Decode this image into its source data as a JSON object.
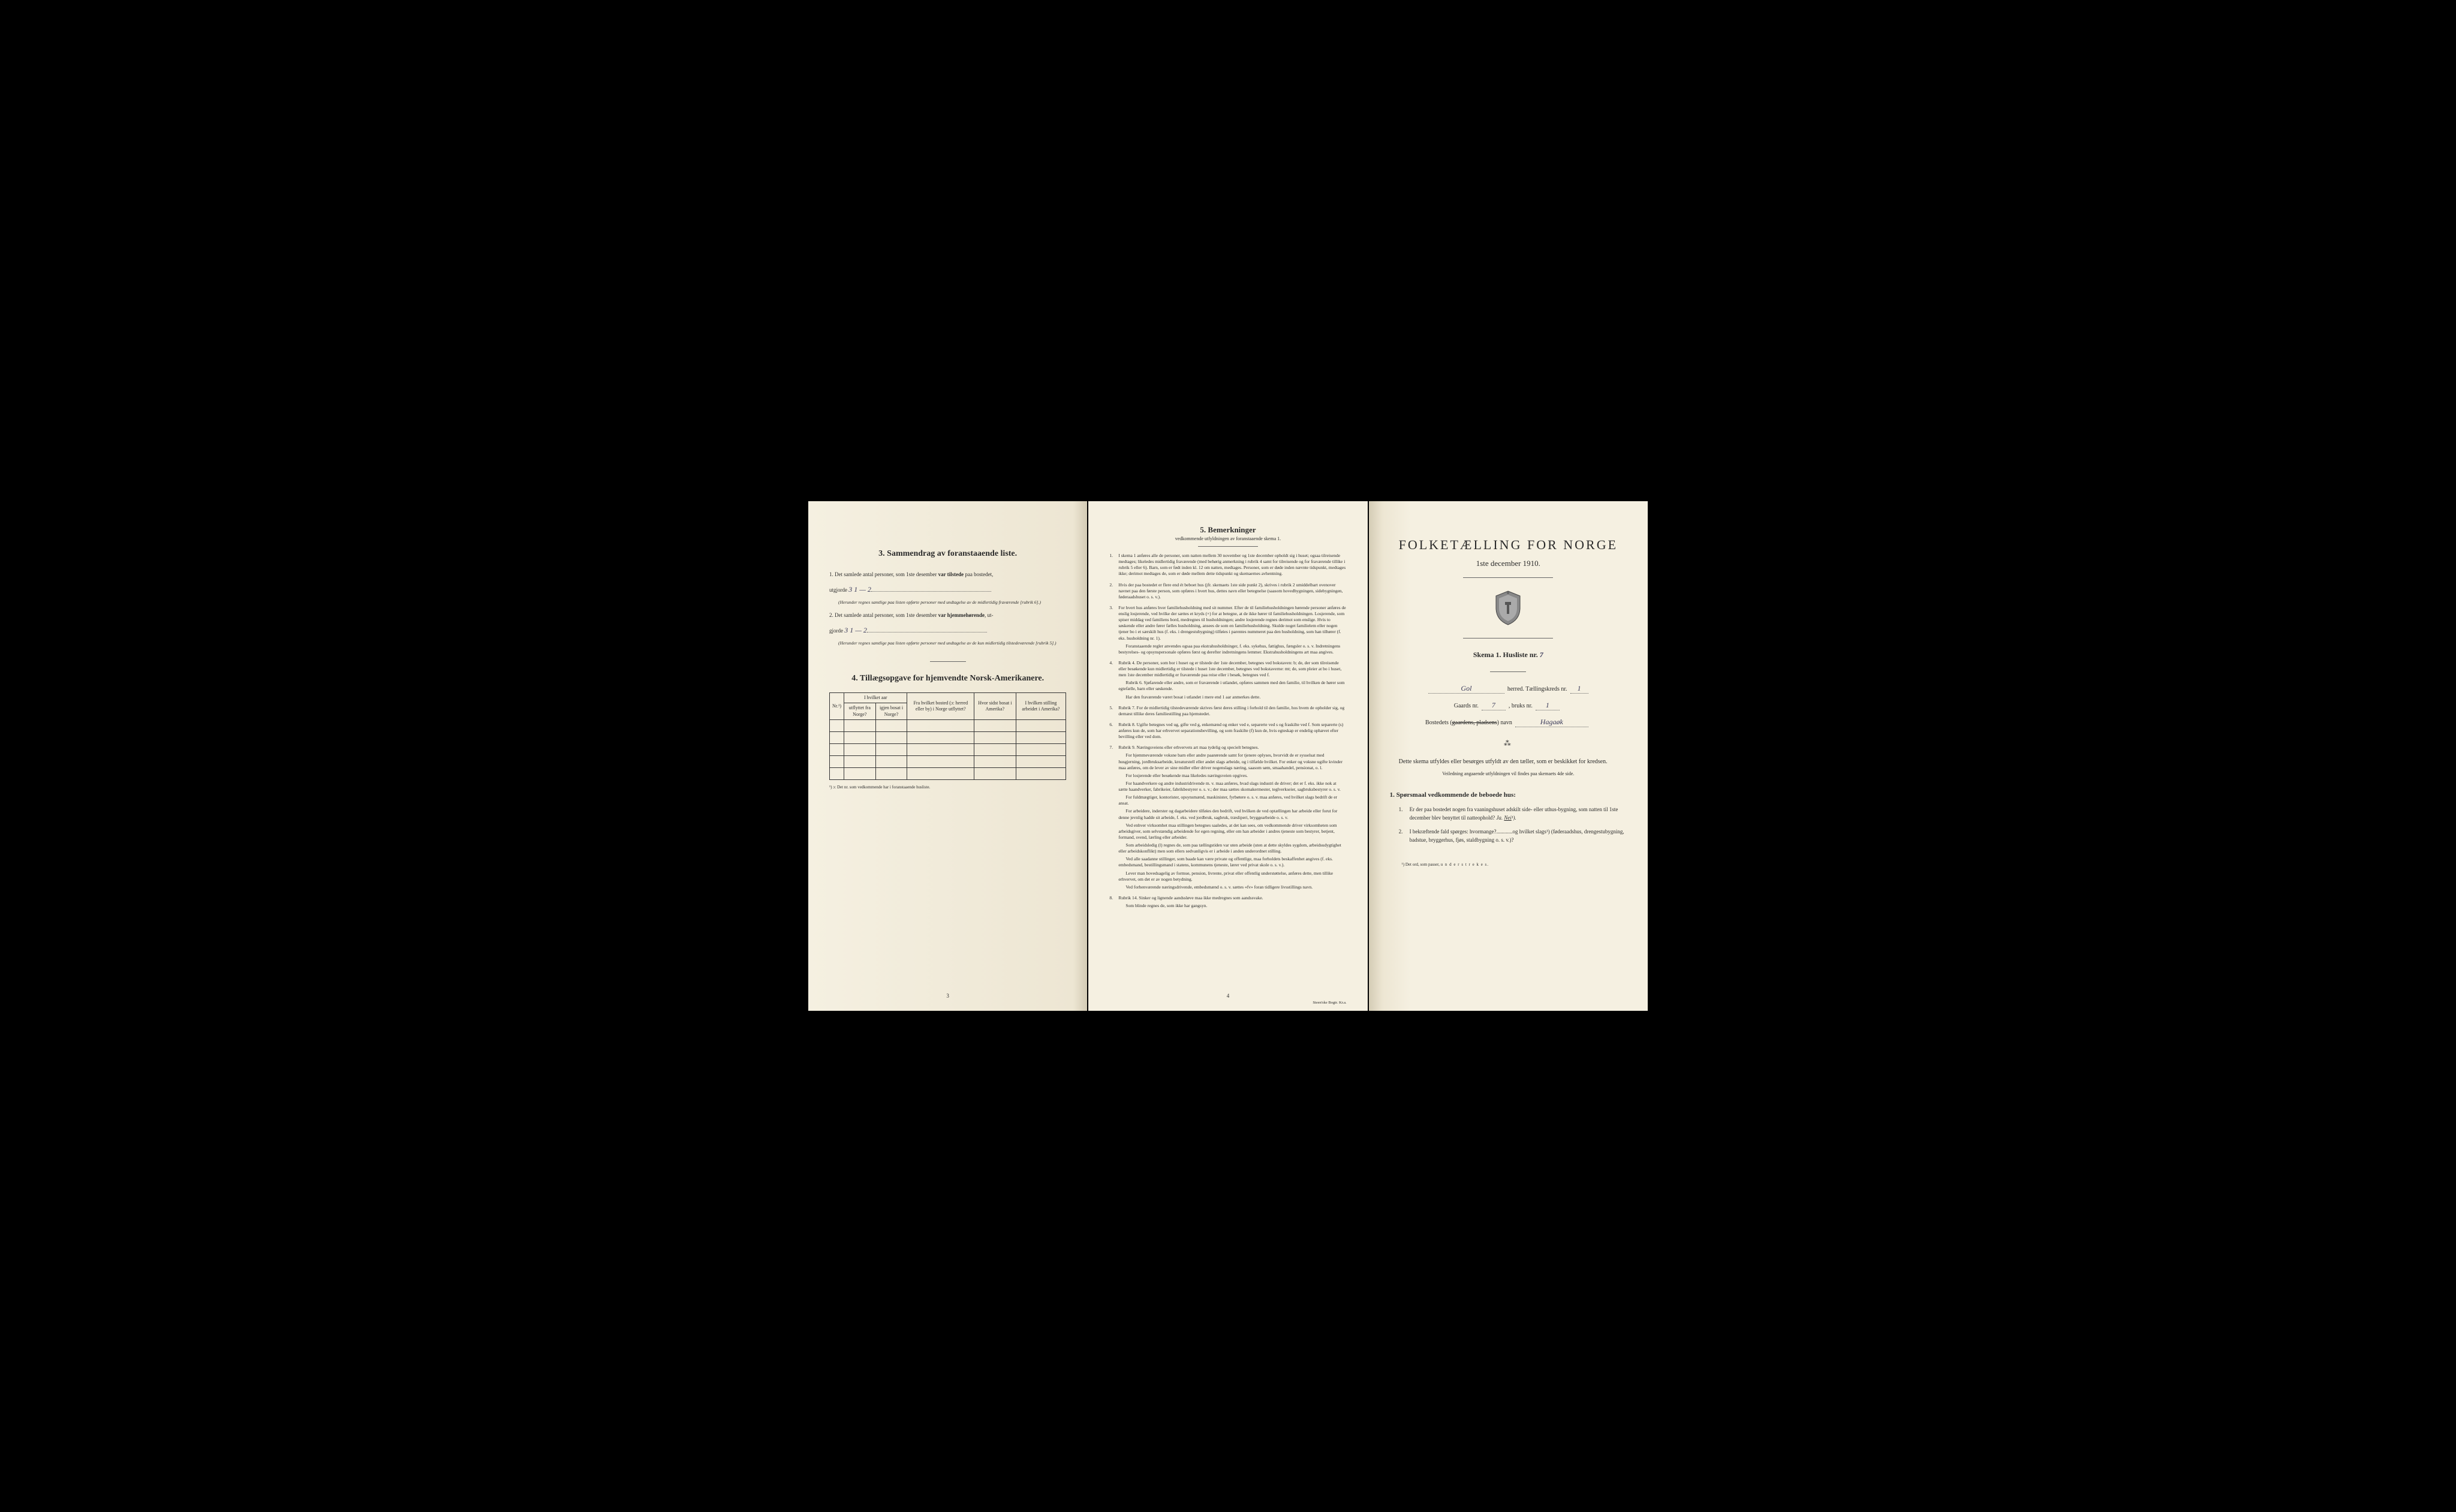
{
  "leftPage": {
    "section3": {
      "title": "3.   Sammendrag av foranstaaende liste.",
      "q1_prefix": "1.  Det samlede antal personer, som 1ste desember ",
      "q1_bold": "var tilstede",
      "q1_suffix": " paa bostedet,",
      "q1_line2": "utgjorde",
      "q1_handwritten": "3    1 — 2",
      "q1_note": "(Herunder regnes samtlige paa listen opførte personer med undtagelse av de midlertidig fraværende [rubrik 6].)",
      "q2_prefix": "2.  Det samlede antal personer, som 1ste desember ",
      "q2_bold": "var hjemmehørende",
      "q2_suffix": ", ut-",
      "q2_line2": "gjorde",
      "q2_handwritten": "3    1 — 2",
      "q2_note": "(Herunder regnes samtlige paa listen opførte personer med undtagelse av de kun midlertidig tilstedeværende [rubrik 5].)"
    },
    "section4": {
      "title": "4.   Tillægsopgave for hjemvendte Norsk-Amerikanere.",
      "headers": {
        "col1": "Nr.¹)",
        "col2a": "I hvilket aar",
        "col2_sub1": "utflyttet fra Norge?",
        "col2_sub2": "igjen bosat i Norge?",
        "col3": "Fra hvilket bosted (ɔ: herred eller by) i Norge utflyttet?",
        "col4": "Hvor sidst bosat i Amerika?",
        "col5": "I hvilken stilling arbeidet i Amerika?"
      },
      "footnote": "¹) ɔ: Det nr. som vedkommende har i foranstaaende husliste.",
      "rows": 5
    },
    "pageNum": "3"
  },
  "middlePage": {
    "title": "5.   Bemerkninger",
    "subtitle": "vedkommende utfyldningen av foranstaaende skema 1.",
    "remarks": [
      {
        "num": "1.",
        "text": "I skema 1 anføres alle de personer, som natten mellem 30 november og 1ste december opholdt sig i huset; ogsaa tilreisende medtages; likeledes midlertidig fraværende (med behørig anmerkning i rubrik 4 samt for tilreisende og for fraværende tillike i rubrik 5 eller 6). Barn, som er født inden kl. 12 om natten, medtages. Personer, som er døde inden nævnte tidspunkt, medtages ikke; derimot medtages de, som er døde mellem dette tidspunkt og skemaernes avhentning."
      },
      {
        "num": "2.",
        "text": "Hvis der paa bostedet er flere end ét beboet hus (jfr. skemaets 1ste side punkt 2), skrives i rubrik 2 umiddelbart ovenover navnet paa den første person, som opføres i hvert hus, dettes navn eller betegnelse (saasom hovedbygningen, sidebygningen, føderaadshuset o. s. v.)."
      },
      {
        "num": "3.",
        "paragraphs": [
          "For hvert hus anføres hver familiehusholdning med sit nummer. Efter de til familiehusholdningen hørende personer anføres de enslig losjerende, ved hvilke der sættes et kryds (×) for at betegne, at de ikke hører til familiehusholdningen. Losjerende, som spiser middag ved familiens bord, medregnes til husholdningen; andre losjerende regnes derimot som enslige. Hvis to søskende eller andre fører fælles husholdning, ansees de som en familiehusholdning. Skulde noget familielem eller nogen tjener bo i et særskilt hus (f. eks. i drengestubygning) tilføies i parentes nummeret paa den husholdning, som han tilhører (f. eks. husholdning nr. 1).",
          "Foranstaaende regler anvendes ogsaa paa ekstrahusholdninger, f. eks. sykehus, fattighus, fængsler o. s. v. Indretningens bestyrelses- og opsynspersonale opføres først og derefter indretningens lemmer. Ekstrahusholdningens art maa angives."
        ]
      },
      {
        "num": "4.",
        "paragraphs": [
          "Rubrik 4. De personer, som bor i huset og er tilstede der 1ste december, betegnes ved bokstaven: b; de, der som tilreisende eller besøkende kun midlertidig er tilstede i huset 1ste december, betegnes ved bokstaverne: mt; de, som pleier at bo i huset, men 1ste december midlertidig er fraværende paa reise eller i besøk, betegnes ved f.",
          "Rubrik 6. Sjøfarende eller andre, som er fraværende i utlandet, opføres sammen med den familie, til hvilken de hører som egtefælle, barn eller søskende.",
          "Har den fraværende været bosat i utlandet i mere end 1 aar anmerkes dette."
        ]
      },
      {
        "num": "5.",
        "text": "Rubrik 7. For de midlertidig tilstedeværende skrives først deres stilling i forhold til den familie, hos hvem de opholder sig, og dernæst tillike deres familiestilling paa hjemstedet."
      },
      {
        "num": "6.",
        "text": "Rubrik 8. Ugifte betegnes ved ug, gifte ved g, enkemænd og enker ved e, separerte ved s og fraskilte ved f. Som separerte (s) anføres kun de, som har erhvervet separationsbevilling, og som fraskilte (f) kun de, hvis egteskap er endelig ophævet efter bevilling eller ved dom."
      },
      {
        "num": "7.",
        "paragraphs": [
          "Rubrik 9. Næringsveiens eller erhvervets art maa tydelig og specielt betegnes.",
          "For hjemmeværende voksne barn eller andre paarørende samt for tjenere oplyses, hvorvidt de er sysselsat med husgjerning, jordbruksarbeide, kreaturstell eller andet slags arbeide, og i tilfælde hvilket. For enker og voksne ugifte kvinder maa anføres, om de lever av sine midler eller driver nogenslags næring, saasom søm, smaahandel, pensionat, o. l.",
          "For losjerende eller besøkende maa likeledes næringsveien opgives.",
          "For haandverkere og andre industridrivende m. v. maa anføres, hvad slags industri de driver; det er f. eks. ikke nok at sætte haandverker, fabrikeier, fabrikbestyrer o. s. v.; der maa sættes skomakermester, teglverkseier, sagbruksbestyrer o. s. v.",
          "For fuldmægtiger, kontorister, opsynsmænd, maskinister, fyrbøtere o. s. v. maa anføres, ved hvilket slags bedrift de er ansat.",
          "For arbeidere, inderster og dagarbeidere tilføies den bedrift, ved hvilken de ved optællingen har arbeide eller forut for denne jevnlig hadde sit arbeide, f. eks. ved jordbruk, sagbruk, træsliperi, bryggearbeide o. s. v.",
          "Ved enhver virksomhet maa stillingen betegnes saaledes, at det kan sees, om vedkommende driver virksomheten som arbeidsgiver, som selvstændig arbeidende for egen regning, eller om han arbeider i andres tjeneste som bestyrer, betjent, formand, svend, lærling eller arbeider.",
          "Som arbeidsledig (l) regnes de, som paa tællingstiden var uten arbeide (uten at dette skyldes sygdom, arbeidsudygtighet eller arbeidskonflikt) men som ellers sedvanligvis er i arbeide i anden underordnet stilling.",
          "Ved alle saadanne stillinger, som baade kan være private og offentlige, maa forholdets beskaffenhet angives (f. eks. embedsmand, bestillingsmand i statens, kommunens tjeneste, lærer ved privat skole o. s. v.).",
          "Lever man hovedsagelig av formue, pension, livrente, privat eller offentlig understøttelse, anføres dette, men tillike erhvervet, om det er av nogen betydning.",
          "Ved forhenværende næringsdrivende, embedsmænd o. s. v. sættes «fv» foran tidligere livsstillings navn."
        ]
      },
      {
        "num": "8.",
        "paragraphs": [
          "Rubrik 14. Sinker og lignende aandssløve maa ikke medregnes som aandssvake.",
          "Som blinde regnes de, som ikke har gangsyn."
        ]
      }
    ],
    "pageNum": "4",
    "printer": "Steen'ske Bogtr.  Kr.a."
  },
  "rightPage": {
    "mainTitle": "FOLKETÆLLING FOR NORGE",
    "subtitle": "1ste december 1910.",
    "skemaPrefix": "Skema 1.   Husliste nr.",
    "skemaValue": "7",
    "fields": {
      "herred_value": "Gol",
      "herred_label": " herred.   Tællingskreds nr.",
      "kreds_value": "1",
      "gaard_label": "Gaards nr.",
      "gaard_value": "7",
      "bruk_label": ", bruks nr.",
      "bruk_value": "1",
      "bosted_label": "Bostedets (",
      "bosted_struck": "gaardens, pladsens",
      "bosted_suffix": ") navn",
      "bosted_value": "Hagaøk"
    },
    "instruction1": "Dette skema utfyldes eller besørges utfyldt av den tæller, som er beskikket for kredsen.",
    "instruction2": "Veiledning angaaende utfyldningen vil findes paa skemaets 4de side.",
    "questionsTitle": "1. Spørsmaal vedkommende de beboede hus:",
    "questions": [
      {
        "num": "1.",
        "text": "Er der paa bostedet nogen fra vaaningshuset adskilt side- eller uthus-bygning, som natten til 1ste december blev benyttet til natteophold?",
        "answers": "Ja.   Nei¹)."
      },
      {
        "num": "2.",
        "text": "I bekræftende fald spørges: hvormange?............og hvilket slags¹) (føderaadshus, drengestubygning, badstue, bryggerhus, fjøs, staldbygning o. s. v.)?"
      }
    ],
    "footnote": "¹) Det ord, som passer, understrekes."
  },
  "colors": {
    "paper": "#f5f0e1",
    "paperDark": "#ede6d3",
    "paperEdge": "#d4ccb5",
    "text": "#2a2a2a",
    "handwriting": "#3a3a5a",
    "background": "#000000"
  }
}
